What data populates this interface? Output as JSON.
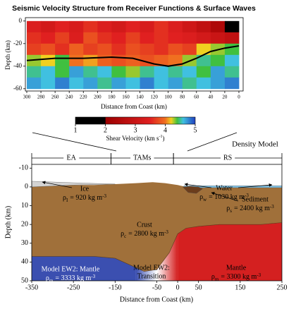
{
  "chart_data": [
    {
      "type": "heatmap",
      "title": "Seismic Velocity Structure from Receiver Functions & Surface Waves",
      "xlabel": "Distance from Coast (km)",
      "ylabel": "Depth (km)",
      "xlim": [
        302,
        -6
      ],
      "ylim": [
        3,
        -62
      ],
      "xticks": [
        300,
        280,
        260,
        240,
        220,
        200,
        180,
        160,
        140,
        120,
        100,
        80,
        60,
        40,
        20,
        0
      ],
      "yticks": [
        0,
        -20,
        -40,
        -60
      ],
      "x_edges": [
        300,
        280,
        260,
        240,
        220,
        200,
        180,
        160,
        140,
        120,
        100,
        80,
        60,
        40,
        20,
        0
      ],
      "y_edges": [
        0,
        -10,
        -20,
        -30,
        -40,
        -50,
        -60
      ],
      "z": [
        [
          3.4,
          3.2,
          3.5,
          3.3,
          3.6,
          3.4,
          3.2,
          3.5,
          3.3,
          3.6,
          3.4,
          3.1,
          2.8,
          2.4,
          2.0
        ],
        [
          3.6,
          3.5,
          3.7,
          3.4,
          3.8,
          3.6,
          3.5,
          3.7,
          3.5,
          3.6,
          3.5,
          3.4,
          3.2,
          3.0,
          2.8
        ],
        [
          3.7,
          3.8,
          3.6,
          3.9,
          3.7,
          3.8,
          3.6,
          3.8,
          3.7,
          3.6,
          3.8,
          3.7,
          4.2,
          4.3,
          4.4
        ],
        [
          4.3,
          4.2,
          4.4,
          4.0,
          4.1,
          3.9,
          3.8,
          3.9,
          3.8,
          3.9,
          4.0,
          4.3,
          4.5,
          4.4,
          4.6
        ],
        [
          4.5,
          4.6,
          4.4,
          4.7,
          4.5,
          4.6,
          4.4,
          4.3,
          4.5,
          4.6,
          4.5,
          4.6,
          4.4,
          4.7,
          4.5
        ],
        [
          4.7,
          4.6,
          4.8,
          4.6,
          4.7,
          4.5,
          4.7,
          4.6,
          4.8,
          4.6,
          4.7,
          4.5,
          4.6,
          4.7,
          4.8
        ]
      ],
      "colorscale": [
        [
          1,
          "#000000"
        ],
        [
          2,
          "#000000"
        ],
        [
          2.01,
          "#9c0000"
        ],
        [
          3.5,
          "#e02020"
        ],
        [
          4,
          "#f07020"
        ],
        [
          4.2,
          "#f0d020"
        ],
        [
          4.4,
          "#40c040"
        ],
        [
          4.6,
          "#40c0e0"
        ],
        [
          5,
          "#2040c0"
        ]
      ],
      "moho": {
        "color": "#000000",
        "x": [
          300,
          260,
          220,
          180,
          150,
          120,
          100,
          80,
          60,
          40,
          20,
          0
        ],
        "y": [
          -35,
          -33,
          -33,
          -32,
          -33,
          -38,
          -40,
          -38,
          -33,
          -27,
          -24,
          -22
        ]
      },
      "colorbar": {
        "lim": [
          1,
          5
        ],
        "ticks": [
          1,
          2,
          3,
          4,
          5
        ],
        "label": {
          "text": "Shear Velocity (km s",
          "sup": "-1",
          "end": ")"
        }
      }
    },
    {
      "type": "section",
      "title": "Density Model",
      "xlabel": "Distance from Coast (km)",
      "ylabel": "Depth (km)",
      "xlim": [
        -350,
        250
      ],
      "ylim": [
        -12,
        50
      ],
      "xticks": [
        -350,
        -250,
        -150,
        -50,
        0,
        50,
        150,
        250
      ],
      "yticks": [
        -10,
        0,
        10,
        20,
        30,
        40,
        50
      ],
      "provinces": [
        {
          "label": "EA",
          "from": -350,
          "to": -160
        },
        {
          "label": "TAMs",
          "from": -160,
          "to": -10
        },
        {
          "label": "RS",
          "from": -10,
          "to": 250
        }
      ],
      "surface": {
        "x": [
          -350,
          -300,
          -250,
          -200,
          -150,
          -100,
          -60,
          -30,
          0,
          20,
          50,
          100,
          150,
          200,
          250
        ],
        "y": [
          0,
          -0.5,
          -1,
          -1,
          -1.5,
          -2,
          -2.5,
          -2,
          -1,
          0,
          0,
          0,
          0,
          0,
          0
        ]
      },
      "moho": {
        "x": [
          -350,
          -300,
          -200,
          -150,
          -110,
          -80,
          -50,
          -20,
          0,
          20,
          50,
          100,
          150,
          200,
          250
        ],
        "y": [
          37,
          37,
          37,
          38,
          42,
          45,
          44,
          35,
          25,
          22,
          21,
          20,
          20,
          20,
          19
        ]
      },
      "ice": {
        "color": "#d4d4d4",
        "x": [
          -350,
          -250,
          -150,
          -250,
          -350
        ],
        "y": [
          -3,
          -2.2,
          -1.5,
          -1,
          0
        ]
      },
      "water": {
        "color": "#7fc4e8",
        "x": [
          15,
          250,
          250,
          15
        ],
        "y": [
          -0.6,
          -0.6,
          0.4,
          0.4
        ]
      },
      "sediment": {
        "color": "#6b3d1c",
        "x": [
          12,
          30,
          50,
          60,
          45,
          25
        ],
        "y": [
          0,
          -0.3,
          0,
          1,
          3.5,
          3
        ]
      },
      "crust_color": "#a0703a",
      "mantle": [
        {
          "from": -350,
          "to": -100,
          "colors": [
            "#3b4fb0"
          ]
        },
        {
          "from": -100,
          "to": 0,
          "colors": [
            "#3b4fb0",
            "#ffffff",
            "#d42020"
          ]
        },
        {
          "from": 0,
          "to": 250,
          "colors": [
            "#d42020"
          ]
        }
      ],
      "annotations": [
        {
          "text": "Ice"
        },
        {
          "symbol": "ρ",
          "sub": "I",
          "eq": "= 920 kg m",
          "sup": "-3"
        },
        {
          "text": "Water"
        },
        {
          "symbol": "ρ",
          "sub": "w",
          "eq": "= 1030 kg m",
          "sup": "-3"
        },
        {
          "text": "Sediment"
        },
        {
          "symbol": "ρ",
          "sub": "s",
          "eq": "= 2400 kg m",
          "sup": "-3"
        },
        {
          "text": "Crust"
        },
        {
          "symbol": "ρ",
          "sub": "c",
          "eq": "= 2800 kg m",
          "sup": "-3"
        },
        {
          "text": "Model EW2: Mantle"
        },
        {
          "symbol": "ρ",
          "sub": "m",
          "eq": "= 3333 kg m",
          "sup": "-3"
        },
        {
          "text": "Model EW2:"
        },
        {
          "text": "Transition"
        },
        {
          "text": "Mantle"
        },
        {
          "symbol": "ρ",
          "sub": "m",
          "eq": "= 3300 kg m",
          "sup": "-3"
        }
      ]
    }
  ]
}
